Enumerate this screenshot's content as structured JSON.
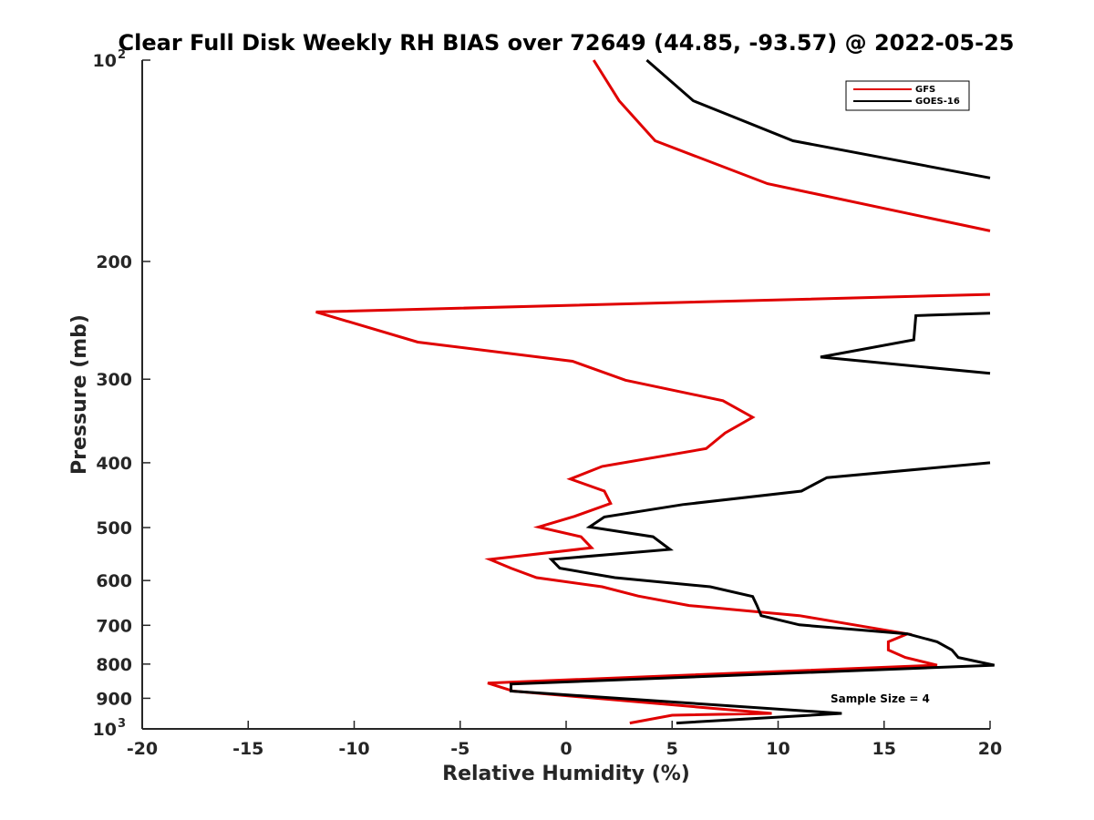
{
  "chart_data": {
    "type": "line",
    "title": "Clear Full Disk Weekly RH BIAS over 72649 (44.85, -93.57) @ 2022-05-25",
    "xlabel": "Relative Humidity (%)",
    "ylabel": "Pressure (mb)",
    "xlim": [
      -20,
      20
    ],
    "ylim": [
      100,
      1000
    ],
    "y_scale": "log",
    "y_reversed": true,
    "grid": false,
    "legend_position": "top-right",
    "x_ticks": [
      {
        "value": -20,
        "label": "-20"
      },
      {
        "value": -15,
        "label": "-15"
      },
      {
        "value": -10,
        "label": "-10"
      },
      {
        "value": -5,
        "label": "-5"
      },
      {
        "value": 0,
        "label": "0"
      },
      {
        "value": 5,
        "label": "5"
      },
      {
        "value": 10,
        "label": "10"
      },
      {
        "value": 15,
        "label": "15"
      },
      {
        "value": 20,
        "label": "20"
      }
    ],
    "y_ticks": [
      {
        "value": 100,
        "base": "10",
        "exp": "2"
      },
      {
        "value": 200,
        "label": "200"
      },
      {
        "value": 300,
        "label": "300"
      },
      {
        "value": 400,
        "label": "400"
      },
      {
        "value": 500,
        "label": "500"
      },
      {
        "value": 600,
        "label": "600"
      },
      {
        "value": 700,
        "label": "700"
      },
      {
        "value": 800,
        "label": "800"
      },
      {
        "value": 900,
        "label": "900"
      },
      {
        "value": 1000,
        "base": "10",
        "exp": "3"
      }
    ],
    "annotation": "Sample Size = 4",
    "series": [
      {
        "name": "GFS",
        "color": "#e00000",
        "points": [
          [
            1.3,
            100
          ],
          [
            2.5,
            115
          ],
          [
            4.2,
            132
          ],
          [
            9.5,
            153
          ],
          [
            20.0,
            180
          ],
          null,
          [
            20.0,
            224
          ],
          [
            -11.8,
            238
          ],
          [
            -7.0,
            264
          ],
          [
            0.3,
            282
          ],
          [
            2.8,
            301
          ],
          [
            7.4,
            323
          ],
          [
            8.8,
            342
          ],
          [
            7.5,
            361
          ],
          [
            6.6,
            381
          ],
          [
            1.7,
            405
          ],
          [
            0.2,
            423
          ],
          [
            1.8,
            441
          ],
          [
            2.1,
            460
          ],
          [
            0.4,
            481
          ],
          [
            -1.3,
            499
          ],
          [
            0.7,
            516
          ],
          [
            1.2,
            536
          ],
          [
            -3.6,
            558
          ],
          [
            -2.6,
            575
          ],
          [
            -1.4,
            594
          ],
          [
            1.7,
            613
          ],
          [
            3.4,
            633
          ],
          [
            5.8,
            654
          ],
          [
            11.0,
            677
          ],
          [
            16.1,
            721
          ],
          [
            15.2,
            741
          ],
          [
            15.2,
            762
          ],
          [
            16.0,
            782
          ],
          [
            17.5,
            803
          ],
          [
            -3.7,
            854
          ],
          [
            -2.5,
            878
          ],
          [
            9.7,
            948
          ],
          [
            5.0,
            954
          ],
          [
            3.0,
            980
          ]
        ]
      },
      {
        "name": "GOES-16",
        "color": "#000000",
        "points": [
          [
            3.8,
            100
          ],
          [
            6.0,
            115
          ],
          [
            10.7,
            132
          ],
          [
            20.0,
            150
          ],
          null,
          [
            20.0,
            239
          ],
          [
            16.5,
            241
          ],
          [
            16.4,
            262
          ],
          [
            12.0,
            278
          ],
          [
            20.0,
            294
          ],
          null,
          [
            20.0,
            400
          ],
          [
            12.3,
            421
          ],
          [
            11.1,
            441
          ],
          [
            5.5,
            462
          ],
          [
            1.8,
            482
          ],
          [
            1.1,
            499
          ],
          [
            4.1,
            516
          ],
          [
            4.9,
            539
          ],
          [
            -0.7,
            558
          ],
          [
            -0.3,
            575
          ],
          [
            2.3,
            594
          ],
          [
            6.8,
            613
          ],
          [
            8.8,
            634
          ],
          [
            9.0,
            654
          ],
          [
            9.2,
            677
          ],
          [
            11.0,
            699
          ],
          [
            16.1,
            721
          ],
          [
            17.5,
            741
          ],
          [
            18.2,
            762
          ],
          [
            18.5,
            782
          ],
          [
            20.2,
            803
          ],
          [
            -2.6,
            857
          ],
          [
            -2.6,
            878
          ],
          [
            13.0,
            948
          ],
          [
            5.2,
            980
          ]
        ]
      }
    ]
  }
}
